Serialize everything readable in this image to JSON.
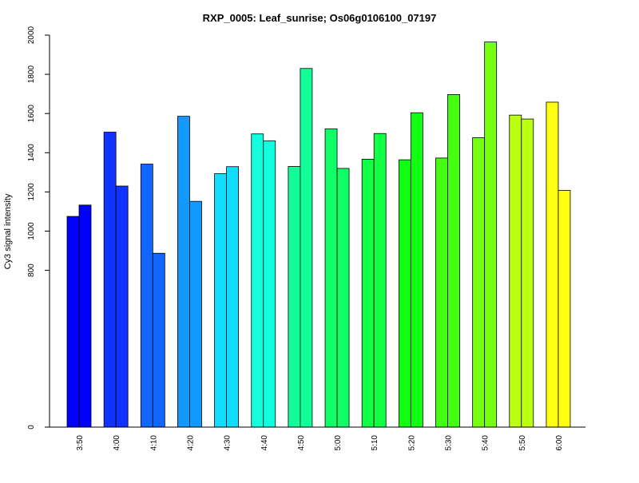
{
  "chart_data": {
    "type": "bar",
    "title": "RXP_0005: Leaf_sunrise; Os06g0106100_07197",
    "xlabel": "",
    "ylabel": "Cy3 signal intensity",
    "ylim": [
      0,
      2000
    ],
    "y_ticks": [
      0,
      800,
      1000,
      1200,
      1400,
      1600,
      1800,
      2000
    ],
    "categories": [
      "3:50",
      "4:00",
      "4:10",
      "4:20",
      "4:30",
      "4:40",
      "4:50",
      "5:00",
      "5:10",
      "5:20",
      "5:30",
      "5:40",
      "5:50",
      "6:00"
    ],
    "colors": [
      "#0000FF",
      "#1133FF",
      "#1166FF",
      "#1199FF",
      "#11DDFF",
      "#11FFDD",
      "#11FF99",
      "#11FF66",
      "#11FF44",
      "#11FF11",
      "#44FF11",
      "#77FF11",
      "#BBFF11",
      "#FFFF11"
    ],
    "series": [
      {
        "values": [
          1075,
          1505,
          1342,
          1586,
          1293,
          1496,
          1330,
          1522,
          1367,
          1364,
          1373,
          1477,
          1592,
          1658
        ]
      },
      {
        "values": [
          1133,
          1230,
          887,
          1152,
          1329,
          1461,
          1830,
          1320,
          1498,
          1604,
          1697,
          1965,
          1572,
          1208
        ]
      }
    ],
    "grid": false,
    "legend": "none"
  }
}
